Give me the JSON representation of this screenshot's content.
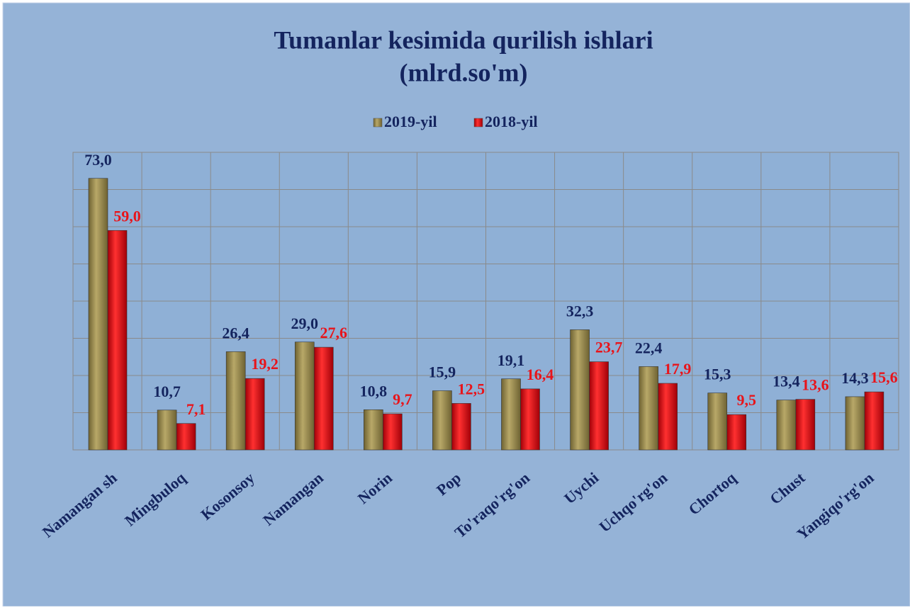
{
  "chart_data": {
    "type": "bar",
    "title": "Tumanlar kesimida qurilish ishlari",
    "subtitle": "(mlrd.so'm)",
    "categories": [
      "Namangan sh",
      "Mingbuloq",
      "Kosonsoy",
      "Namangan",
      "Norin",
      "Pop",
      "To'raqo'rg'on",
      "Uychi",
      "Uchqo'rg'on",
      "Chortoq",
      "Chust",
      "Yangiqo'rg'on"
    ],
    "series": [
      {
        "name": "2019-yil",
        "color": "#9a8a4e",
        "label_color": "#14245e",
        "values": [
          73.0,
          10.7,
          26.4,
          29.0,
          10.8,
          15.9,
          19.1,
          32.3,
          22.4,
          15.3,
          13.4,
          14.3
        ],
        "value_labels": [
          "73,0",
          "10,7",
          "26,4",
          "29,0",
          "10,8",
          "15,9",
          "19,1",
          "32,3",
          "22,4",
          "15,3",
          "13,4",
          "14,3"
        ]
      },
      {
        "name": "2018-yil",
        "color": "#e8141a",
        "label_color": "#e8141a",
        "values": [
          59.0,
          7.1,
          19.2,
          27.6,
          9.7,
          12.5,
          16.4,
          23.7,
          17.9,
          9.5,
          13.6,
          15.6
        ],
        "value_labels": [
          "59,0",
          "7,1",
          "19,2",
          "27,6",
          "9,7",
          "12,5",
          "16,4",
          "23,7",
          "17,9",
          "9,5",
          "13,6",
          "15,6"
        ]
      }
    ],
    "ylim": [
      0,
      80
    ],
    "yticks": [
      0,
      10,
      20,
      30,
      40,
      50,
      60,
      70,
      80
    ],
    "grid": true,
    "legend": "top"
  }
}
